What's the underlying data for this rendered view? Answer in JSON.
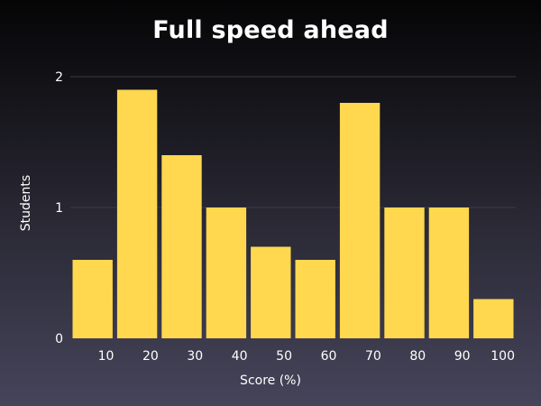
{
  "chart_data": {
    "type": "bar",
    "title": "Full speed ahead",
    "xlabel": "Score (%)",
    "ylabel": "Students",
    "bins": [
      {
        "start": 0,
        "end": 10,
        "value": 0.6
      },
      {
        "start": 10,
        "end": 20,
        "value": 1.9
      },
      {
        "start": 20,
        "end": 30,
        "value": 1.4
      },
      {
        "start": 30,
        "end": 40,
        "value": 1.0
      },
      {
        "start": 40,
        "end": 50,
        "value": 0.7
      },
      {
        "start": 50,
        "end": 60,
        "value": 0.6
      },
      {
        "start": 60,
        "end": 70,
        "value": 1.8
      },
      {
        "start": 70,
        "end": 80,
        "value": 1.0
      },
      {
        "start": 80,
        "end": 90,
        "value": 1.0
      },
      {
        "start": 90,
        "end": 100,
        "value": 0.3
      }
    ],
    "xlim": [
      0,
      100
    ],
    "ylim": [
      0,
      2
    ],
    "x_ticks": [
      10,
      20,
      30,
      40,
      50,
      60,
      70,
      80,
      90,
      100
    ],
    "y_ticks": [
      0,
      1,
      2
    ],
    "grid": "horizontal",
    "colors": {
      "bar": "#ffd84f",
      "grid": "#3c3b48",
      "text": "#ffffff"
    }
  }
}
